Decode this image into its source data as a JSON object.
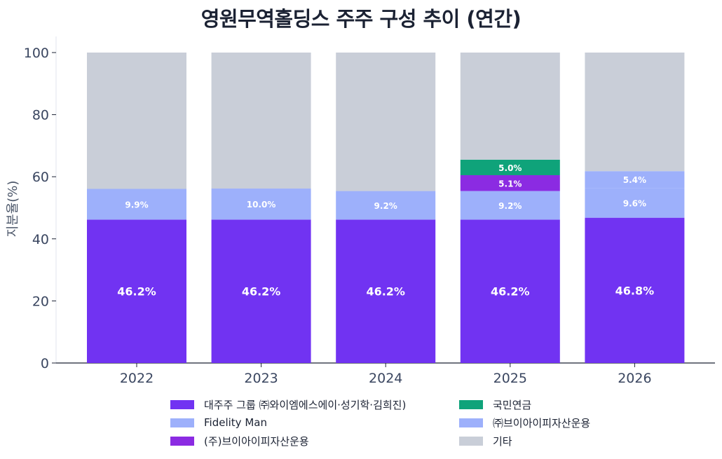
{
  "chart_data": {
    "type": "bar",
    "stacked": true,
    "title": "영원무역홀딩스 주주 구성 추이 (연간)",
    "ylabel": "지분율(%)",
    "ylim": [
      0,
      100
    ],
    "yticks": [
      0,
      20,
      40,
      60,
      80,
      100
    ],
    "categories": [
      "2022",
      "2023",
      "2024",
      "2025",
      "2026"
    ],
    "series": [
      {
        "name": "대주주 그룹 ㈜와이엠에스에이·성기학·김희진)",
        "color": "#7133f2",
        "values": [
          46.2,
          46.2,
          46.2,
          46.2,
          46.8
        ],
        "labels": [
          "46.2%",
          "46.2%",
          "46.2%",
          "46.2%",
          "46.8%"
        ]
      },
      {
        "name": "Fidelity Man",
        "color": "#9db0fb",
        "values": [
          9.9,
          10.0,
          9.2,
          9.2,
          9.6
        ],
        "labels": [
          "9.9%",
          "10.0%",
          "9.2%",
          "9.2%",
          "9.6%"
        ]
      },
      {
        "name": "(주)브이아이피자산운용",
        "color": "#8b2be2",
        "values": [
          0,
          0,
          0,
          5.1,
          0
        ],
        "labels": [
          "",
          "",
          "",
          "5.1%",
          ""
        ]
      },
      {
        "name": "국민연금",
        "color": "#0fa37a",
        "values": [
          0,
          0,
          0,
          5.0,
          0
        ],
        "labels": [
          "",
          "",
          "",
          "5.0%",
          ""
        ]
      },
      {
        "name": "㈜브이아이피자산운용",
        "color": "#9db0fb",
        "values": [
          0,
          0,
          0,
          0,
          5.4
        ],
        "labels": [
          "",
          "",
          "",
          "",
          "5.4%"
        ]
      },
      {
        "name": "기타",
        "color": "#c9ced8",
        "values": [
          43.9,
          43.8,
          44.6,
          34.5,
          38.2
        ],
        "labels": [
          "",
          "",
          "",
          "",
          ""
        ]
      }
    ],
    "legend": "bottom-center",
    "grid": false
  }
}
